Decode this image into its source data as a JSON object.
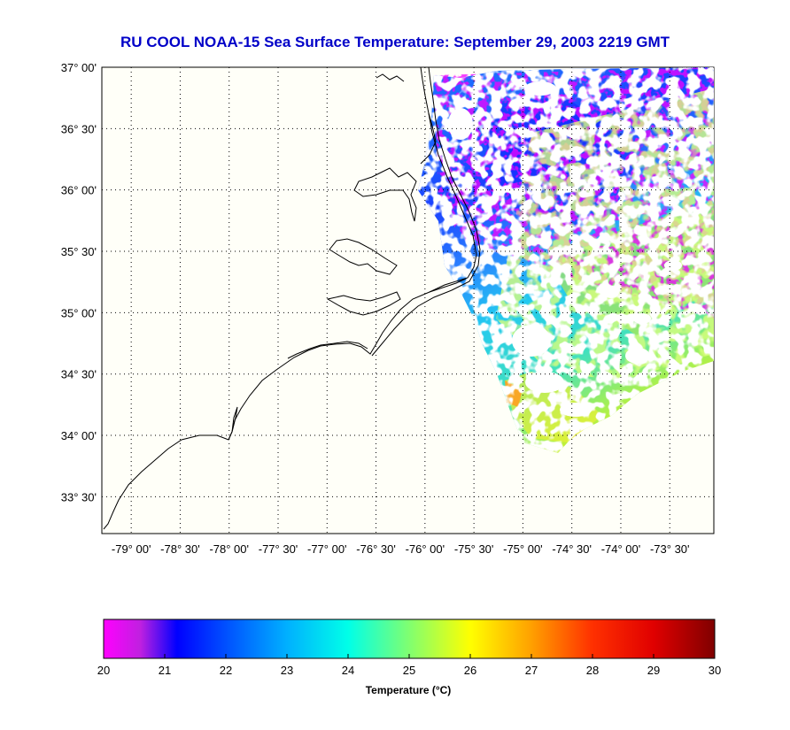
{
  "title": "RU COOL  NOAA-15  Sea Surface Temperature:  September 29, 2003 2219 GMT",
  "map": {
    "lon_range": [
      -79.3,
      -73.05
    ],
    "lat_range": [
      33.2,
      37.0
    ],
    "lat_ticks": [
      {
        "value": 37.0,
        "label": "37° 00'"
      },
      {
        "value": 36.5,
        "label": "36° 30'"
      },
      {
        "value": 36.0,
        "label": "36° 00'"
      },
      {
        "value": 35.5,
        "label": "35° 30'"
      },
      {
        "value": 35.0,
        "label": "35° 00'"
      },
      {
        "value": 34.5,
        "label": "34° 30'"
      },
      {
        "value": 34.0,
        "label": "34° 00'"
      },
      {
        "value": 33.5,
        "label": "33° 30'"
      }
    ],
    "lon_ticks": [
      {
        "value": -79.0,
        "label": "-79° 00'"
      },
      {
        "value": -78.5,
        "label": "-78° 30'"
      },
      {
        "value": -78.0,
        "label": "-78° 00'"
      },
      {
        "value": -77.5,
        "label": "-77° 30'"
      },
      {
        "value": -77.0,
        "label": "-77° 00'"
      },
      {
        "value": -76.5,
        "label": "-76° 30'"
      },
      {
        "value": -76.0,
        "label": "-76° 00'"
      },
      {
        "value": -75.5,
        "label": "-75° 30'"
      },
      {
        "value": -75.0,
        "label": "-75° 00'"
      },
      {
        "value": -74.5,
        "label": "-74° 30'"
      },
      {
        "value": -74.0,
        "label": "-74° 00'"
      },
      {
        "value": -73.5,
        "label": "-73° 30'"
      }
    ],
    "grid": true,
    "background": "#fffff8",
    "coastline_color": "#000000"
  },
  "colorbar": {
    "min": 20,
    "max": 30,
    "ticks": [
      20,
      21,
      22,
      23,
      24,
      25,
      26,
      27,
      28,
      29,
      30
    ],
    "label": "Temperature (°C)",
    "colormap": [
      {
        "value": 20.0,
        "color": "#ff00ff"
      },
      {
        "value": 20.6,
        "color": "#c020e0"
      },
      {
        "value": 21.2,
        "color": "#0000ff"
      },
      {
        "value": 22.0,
        "color": "#0050ff"
      },
      {
        "value": 23.0,
        "color": "#00b0ff"
      },
      {
        "value": 24.0,
        "color": "#00ffe8"
      },
      {
        "value": 25.0,
        "color": "#80ff70"
      },
      {
        "value": 26.0,
        "color": "#ffff00"
      },
      {
        "value": 27.0,
        "color": "#ffa000"
      },
      {
        "value": 28.0,
        "color": "#ff3000"
      },
      {
        "value": 29.0,
        "color": "#e00000"
      },
      {
        "value": 30.0,
        "color": "#800000"
      }
    ]
  }
}
